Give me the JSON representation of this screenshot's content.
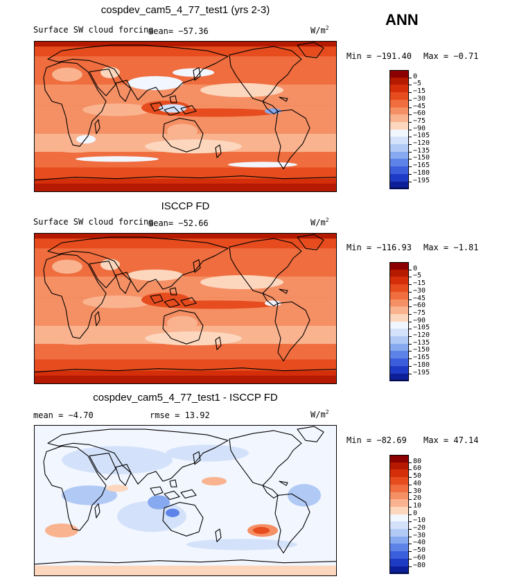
{
  "season": "ANN",
  "panels": [
    {
      "title": "cospdev_cam5_4_77_test1 (yrs 2-3)",
      "variable": "Surface SW cloud forcing",
      "mean_text": "mean= −57.36",
      "units": "W/m",
      "units_exp": "2",
      "min_text": "Min = −191.40",
      "max_text": "Max =  −0.71"
    },
    {
      "title": "ISCCP FD",
      "variable": "Surface SW cloud forcing",
      "mean_text": "mean= −52.66",
      "units": "W/m",
      "units_exp": "2",
      "min_text": "Min = −116.93",
      "max_text": "Max =  −1.81"
    },
    {
      "title": "cospdev_cam5_4_77_test1 - ISCCP FD",
      "mean_text": "mean =  −4.70",
      "rmse_text": "rmse =  13.92",
      "units": "W/m",
      "units_exp": "2",
      "min_text": "Min = −82.69",
      "max_text": "Max =  47.14"
    }
  ],
  "colorbars": {
    "absolute": {
      "labels": [
        "0",
        "−5",
        "−15",
        "−30",
        "−45",
        "−60",
        "−75",
        "−90",
        "−105",
        "−120",
        "−135",
        "−150",
        "−165",
        "−180",
        "−195"
      ],
      "colors": [
        "#8b0000",
        "#b51a00",
        "#d42e0b",
        "#e64c1e",
        "#ef6d3e",
        "#f58f64",
        "#f9b38f",
        "#fcd6bd",
        "#f2f6ff",
        "#d3e2fa",
        "#b0c9f5",
        "#87a9ef",
        "#5d83e8",
        "#3b5fdc",
        "#1e3bc5",
        "#0d1e99"
      ]
    },
    "difference": {
      "labels": [
        "80",
        "60",
        "50",
        "40",
        "30",
        "20",
        "10",
        "0",
        "−10",
        "−20",
        "−30",
        "−40",
        "−50",
        "−60",
        "−80"
      ],
      "colors": [
        "#8b0000",
        "#b51a00",
        "#d42e0b",
        "#e64c1e",
        "#ef6d3e",
        "#f58f64",
        "#f9b38f",
        "#fcd6bd",
        "#f2f6ff",
        "#d3e2fa",
        "#b0c9f5",
        "#87a9ef",
        "#5d83e8",
        "#3b5fdc",
        "#1e3bc5",
        "#0d1e99"
      ]
    }
  },
  "chart_data": [
    {
      "type": "heatmap",
      "title": "cospdev_cam5_4_77_test1 (yrs 2-3)",
      "variable": "Surface SW cloud forcing",
      "units": "W/m2",
      "mean": -57.36,
      "min": -191.4,
      "max": -0.71,
      "levels": [
        0,
        -5,
        -15,
        -30,
        -45,
        -60,
        -75,
        -90,
        -105,
        -120,
        -135,
        -150,
        -165,
        -180,
        -195
      ]
    },
    {
      "type": "heatmap",
      "title": "ISCCP FD",
      "variable": "Surface SW cloud forcing",
      "units": "W/m2",
      "mean": -52.66,
      "min": -116.93,
      "max": -1.81,
      "levels": [
        0,
        -5,
        -15,
        -30,
        -45,
        -60,
        -75,
        -90,
        -105,
        -120,
        -135,
        -150,
        -165,
        -180,
        -195
      ]
    },
    {
      "type": "heatmap",
      "title": "cospdev_cam5_4_77_test1 - ISCCP FD",
      "units": "W/m2",
      "mean": -4.7,
      "rmse": 13.92,
      "min": -82.69,
      "max": 47.14,
      "levels": [
        80,
        60,
        50,
        40,
        30,
        20,
        10,
        0,
        -10,
        -20,
        -30,
        -40,
        -50,
        -60,
        -80
      ]
    }
  ]
}
